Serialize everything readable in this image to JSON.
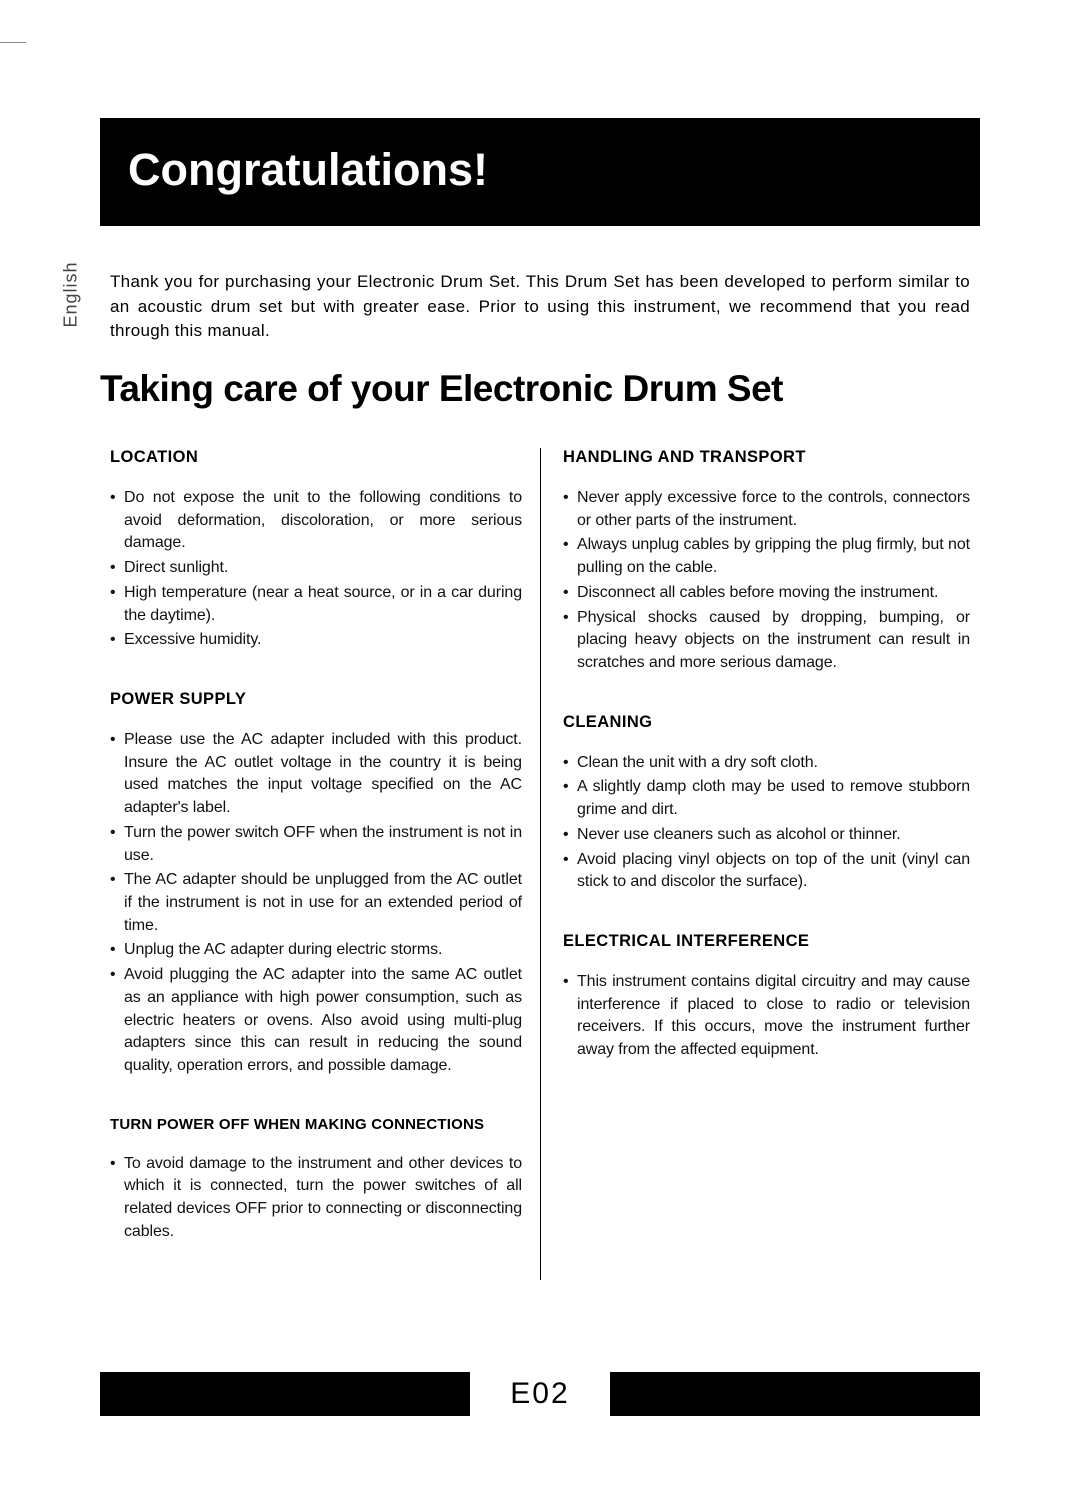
{
  "language_tab": "English",
  "banner_title": "Congratulations!",
  "intro_text": "Thank you for purchasing your Electronic Drum Set. This Drum Set has been developed to perform similar to an acoustic drum set but with greater ease. Prior to using this instrument, we recommend that you read through this manual.",
  "section_title": "Taking care of your Electronic Drum Set",
  "left": {
    "sec1_title": "LOCATION",
    "sec1_items": [
      "Do not expose the unit to the following conditions to avoid deformation, discoloration, or more serious damage.",
      "Direct sunlight.",
      "High temperature (near a heat source, or in a car during the daytime).",
      "Excessive humidity."
    ],
    "sec2_title": "POWER SUPPLY",
    "sec2_items": [
      "Please use the AC adapter included with this product. Insure the AC outlet voltage in the country it is being used matches the input voltage specified on the AC adapter's label.",
      "Turn the power switch OFF when the instrument is not in use.",
      "The AC adapter should be unplugged from the AC outlet if the instrument is not in use for an extended period of time.",
      "Unplug the AC adapter during electric storms.",
      "Avoid plugging the AC adapter into the same AC outlet as an appliance with high power consumption, such as electric heaters or ovens. Also avoid using multi-plug adapters since this can result in reducing the sound quality, operation errors, and possible damage."
    ],
    "sec3_title": "TURN POWER OFF WHEN MAKING CONNECTIONS",
    "sec3_items": [
      "To avoid damage to the instrument and other devices to which it is connected, turn the power switches of all related devices OFF prior to connecting or disconnecting cables."
    ]
  },
  "right": {
    "sec1_title": "HANDLING AND TRANSPORT",
    "sec1_items": [
      "Never apply excessive force to the controls, connectors or other parts of the instrument.",
      "Always unplug cables by gripping the plug firmly, but not pulling on the cable.",
      "Disconnect all cables before moving the instrument.",
      "Physical shocks caused by dropping, bumping, or placing heavy objects on the instrument can result in scratches and more serious damage."
    ],
    "sec2_title": "CLEANING",
    "sec2_items": [
      "Clean the unit with a dry soft cloth.",
      "A slightly damp cloth may be used to remove stubborn grime and dirt.",
      "Never use cleaners such as alcohol or thinner.",
      "Avoid placing vinyl objects on top of the unit (vinyl can stick to and discolor the surface)."
    ],
    "sec3_title": "ELECTRICAL INTERFERENCE",
    "sec3_items": [
      "This instrument contains digital circuitry and may cause interference if placed to close to radio or television receivers. If this occurs, move the instrument further away from the affected equipment."
    ]
  },
  "page_number": "E02",
  "colors": {
    "black": "#000000",
    "white": "#ffffff",
    "text": "#111111"
  }
}
